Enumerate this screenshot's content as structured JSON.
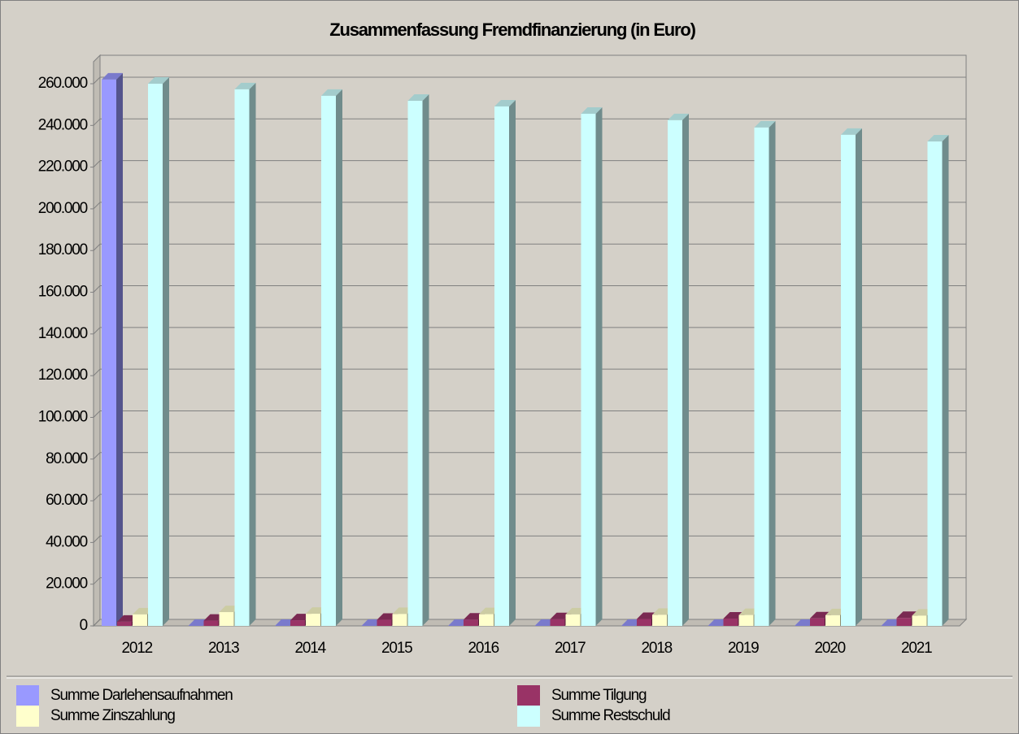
{
  "chart_data": {
    "type": "bar3d",
    "title": "Zusammenfassung Fremdfinanzierung (in Euro)",
    "categories": [
      "2012",
      "2013",
      "2014",
      "2015",
      "2016",
      "2017",
      "2018",
      "2019",
      "2020",
      "2021"
    ],
    "series": [
      {
        "name": "Summe Darlehensaufnahmen",
        "color": "#9999ff",
        "values": [
          262000,
          0,
          0,
          0,
          0,
          0,
          0,
          0,
          0,
          0
        ]
      },
      {
        "name": "Summe Tilgung",
        "color": "#993366",
        "values": [
          2000,
          2500,
          2700,
          2900,
          3000,
          3200,
          3300,
          3500,
          3600,
          3800
        ]
      },
      {
        "name": "Summe Zinszahlung",
        "color": "#ffffcc",
        "values": [
          5500,
          6600,
          5800,
          5700,
          5600,
          5500,
          5300,
          5200,
          5100,
          4900
        ]
      },
      {
        "name": "Summe Restschuld",
        "color": "#ccffff",
        "values": [
          260000,
          257300,
          254200,
          251800,
          249100,
          245600,
          242500,
          239000,
          235500,
          232300
        ]
      }
    ],
    "ylim": [
      0,
      260000
    ],
    "yticks": [
      0,
      {
        "value": 20000,
        "label": "20.000"
      },
      {
        "value": 40000,
        "label": "40.000"
      },
      {
        "value": 60000,
        "label": "60.000"
      },
      {
        "value": 80000,
        "label": "80.000"
      },
      {
        "value": 100000,
        "label": "100.000"
      },
      {
        "value": 120000,
        "label": "120.000"
      },
      {
        "value": 140000,
        "label": "140.000"
      },
      {
        "value": 160000,
        "label": "160.000"
      },
      {
        "value": 180000,
        "label": "180.000"
      },
      {
        "value": 200000,
        "label": "200.000"
      },
      {
        "value": 220000,
        "label": "220.000"
      },
      {
        "value": 240000,
        "label": "240.000"
      },
      {
        "value": 260000,
        "label": "260.000"
      }
    ],
    "grid": true
  }
}
